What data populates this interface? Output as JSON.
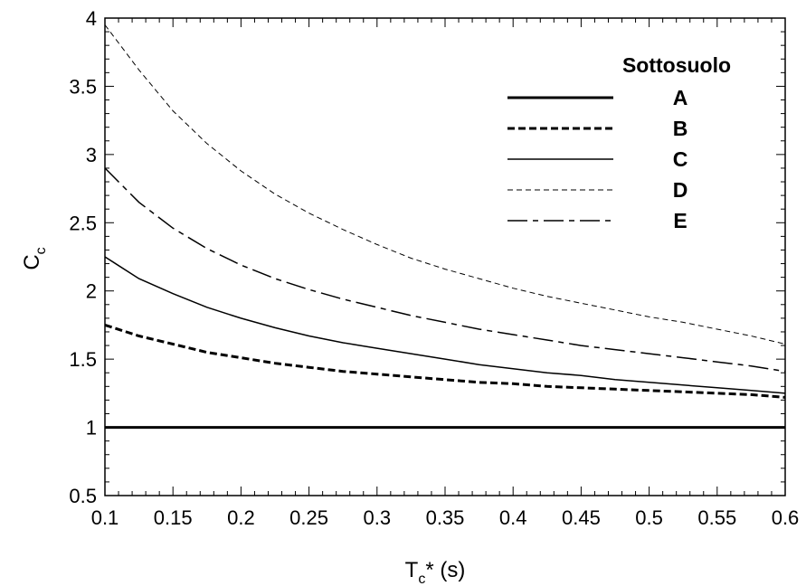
{
  "chart_data": {
    "type": "line",
    "xlabel": {
      "main": "T",
      "sub": "c",
      "rest": "* (s)"
    },
    "ylabel": {
      "main": "C",
      "sub": "c"
    },
    "xlim": [
      0.1,
      0.6
    ],
    "ylim": [
      0.5,
      4
    ],
    "xticks": [
      "0.1",
      "0.15",
      "0.2",
      "0.25",
      "0.3",
      "0.35",
      "0.4",
      "0.45",
      "0.5",
      "0.55",
      "0.6"
    ],
    "yticks": [
      "0.5",
      "1",
      "1.5",
      "2",
      "2.5",
      "3",
      "3.5",
      "4"
    ],
    "legend": {
      "title": "Sottosuolo",
      "placement": "top-right"
    },
    "x": [
      0.1,
      0.125,
      0.15,
      0.175,
      0.2,
      0.225,
      0.25,
      0.275,
      0.3,
      0.325,
      0.35,
      0.375,
      0.4,
      0.425,
      0.45,
      0.475,
      0.5,
      0.525,
      0.55,
      0.575,
      0.6
    ],
    "series": [
      {
        "name": "A",
        "style": "thick-solid",
        "values": [
          1,
          1,
          1,
          1,
          1,
          1,
          1,
          1,
          1,
          1,
          1,
          1,
          1,
          1,
          1,
          1,
          1,
          1,
          1,
          1,
          1
        ]
      },
      {
        "name": "B",
        "style": "thick-dashed",
        "values": [
          1.75,
          1.67,
          1.61,
          1.55,
          1.51,
          1.47,
          1.44,
          1.41,
          1.39,
          1.37,
          1.35,
          1.33,
          1.32,
          1.3,
          1.29,
          1.28,
          1.27,
          1.26,
          1.25,
          1.24,
          1.22
        ]
      },
      {
        "name": "C",
        "style": "thin-solid",
        "values": [
          2.25,
          2.09,
          1.98,
          1.88,
          1.8,
          1.73,
          1.67,
          1.62,
          1.58,
          1.54,
          1.5,
          1.46,
          1.43,
          1.4,
          1.38,
          1.35,
          1.33,
          1.31,
          1.29,
          1.27,
          1.25
        ]
      },
      {
        "name": "D",
        "style": "thin-dashed",
        "values": [
          3.95,
          3.62,
          3.32,
          3.08,
          2.88,
          2.71,
          2.57,
          2.45,
          2.34,
          2.24,
          2.16,
          2.09,
          2.02,
          1.96,
          1.91,
          1.86,
          1.81,
          1.77,
          1.72,
          1.67,
          1.61
        ]
      },
      {
        "name": "E",
        "style": "dash-dot",
        "values": [
          2.9,
          2.65,
          2.46,
          2.31,
          2.19,
          2.09,
          2.01,
          1.94,
          1.88,
          1.82,
          1.77,
          1.72,
          1.68,
          1.64,
          1.6,
          1.57,
          1.54,
          1.51,
          1.48,
          1.45,
          1.41
        ]
      }
    ]
  }
}
